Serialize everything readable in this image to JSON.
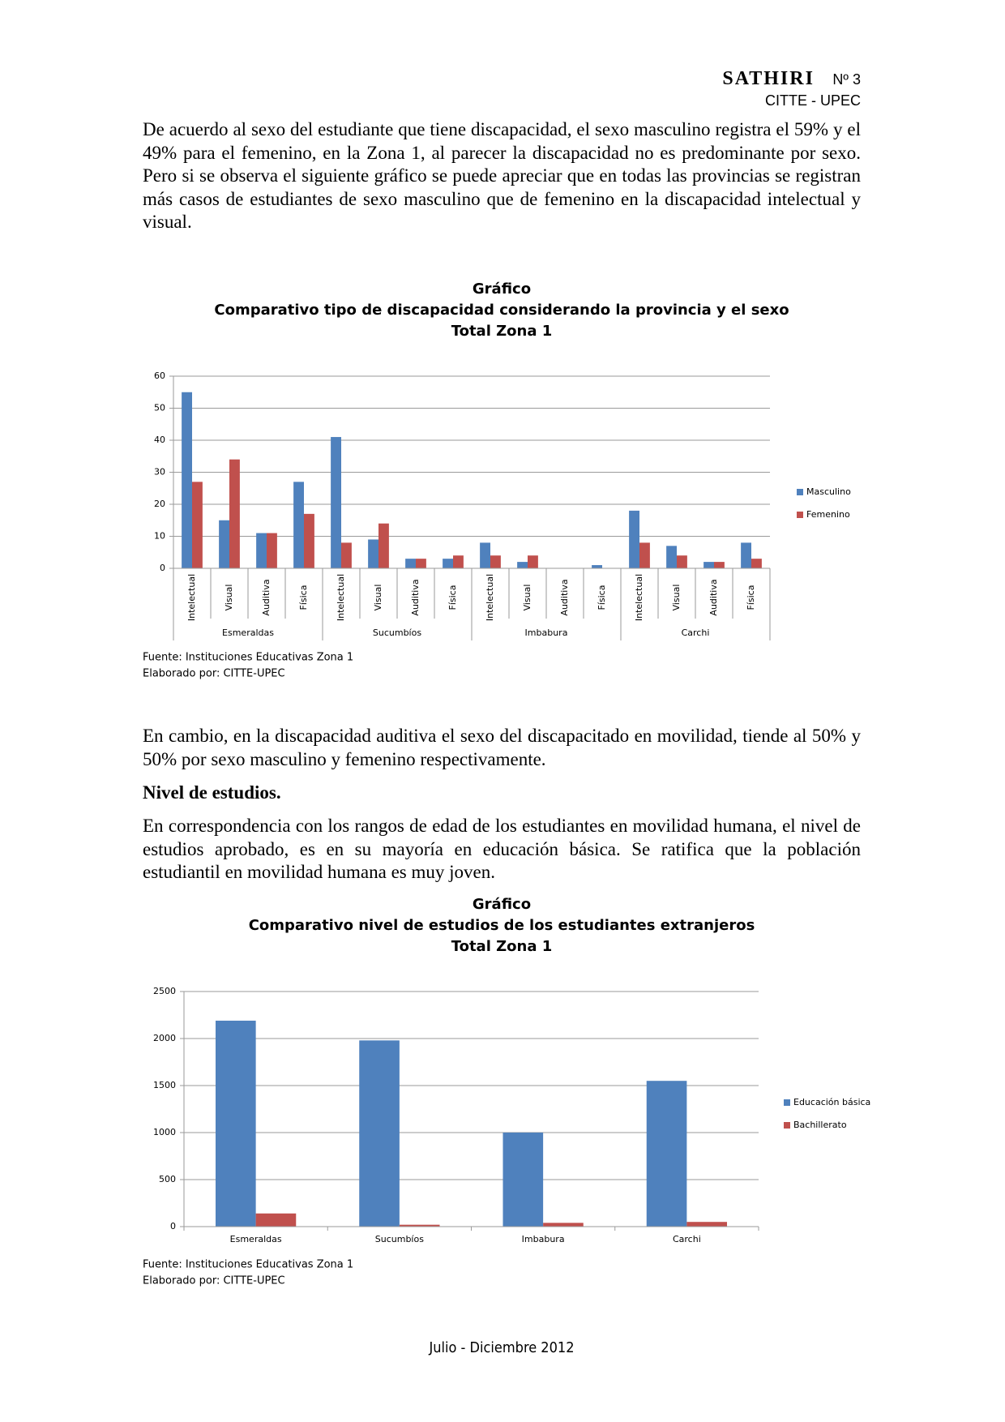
{
  "header": {
    "journal": "SATHIRI",
    "issue": "Nº 3",
    "publisher": "CITTE - UPEC"
  },
  "text": {
    "p1": "De acuerdo al sexo del estudiante que tiene discapacidad, el sexo masculino registra el 59% y el 49% para el femenino, en la Zona 1, al parecer la discapacidad no es predominante por sexo. Pero si se observa el siguiente gráfico se puede apreciar que en todas las provincias se registran más casos de estudiantes de sexo masculino que de femenino en la discapacidad intelectual y visual.",
    "p2": "En cambio, en la discapacidad auditiva el sexo del discapacitado en movilidad, tiende al 50% y 50% por sexo masculino y femenino respectivamente.",
    "heading": "Nivel de estudios.",
    "p3": "En correspondencia con los rangos de edad de los estudiantes en movilidad humana, el nivel de estudios aprobado, es en su mayoría en educación básica. Se ratifica que la población estudiantil en movilidad humana es muy joven."
  },
  "chart_data": [
    {
      "type": "bar",
      "title": [
        "Gráfico",
        "Comparativo tipo de discapacidad considerando la provincia y el sexo",
        "Total Zona 1"
      ],
      "categories": [
        "Intelectual",
        "Visual",
        "Auditiva",
        "Física",
        "Intelectual",
        "Visual",
        "Auditiva",
        "Física",
        "Intelectual",
        "Visual",
        "Auditiva",
        "Física",
        "Intelectual",
        "Visual",
        "Auditiva",
        "Física"
      ],
      "groups": [
        "Esmeraldas",
        "Sucumbíos",
        "Imbabura",
        "Carchi"
      ],
      "series": [
        {
          "name": "Masculino",
          "color": "#4f81bd",
          "values": [
            55,
            15,
            11,
            27,
            41,
            9,
            3,
            3,
            8,
            2,
            0,
            1,
            18,
            7,
            2,
            8
          ]
        },
        {
          "name": "Femenino",
          "color": "#c0504d",
          "values": [
            27,
            34,
            11,
            17,
            8,
            14,
            3,
            4,
            4,
            4,
            0,
            0,
            8,
            4,
            2,
            3
          ]
        }
      ],
      "ylim": [
        0,
        60
      ],
      "yticks": [
        0,
        10,
        20,
        30,
        40,
        50,
        60
      ],
      "grid": true,
      "legend": "right",
      "source": [
        "Fuente: Instituciones Educativas Zona 1",
        "Elaborado por: CITTE-UPEC"
      ]
    },
    {
      "type": "bar",
      "title": [
        "Gráfico",
        "Comparativo nivel de estudios de los estudiantes extranjeros",
        "Total Zona 1"
      ],
      "categories": [
        "Esmeraldas",
        "Sucumbíos",
        "Imbabura",
        "Carchi"
      ],
      "series": [
        {
          "name": "Educación básica",
          "color": "#4f81bd",
          "values": [
            2190,
            1980,
            1000,
            1550
          ]
        },
        {
          "name": "Bachillerato",
          "color": "#c0504d",
          "values": [
            140,
            20,
            40,
            50
          ]
        }
      ],
      "ylim": [
        0,
        2500
      ],
      "yticks": [
        0,
        500,
        1000,
        1500,
        2000,
        2500
      ],
      "grid": true,
      "legend": "right",
      "source": [
        "Fuente: Instituciones Educativas Zona 1",
        "Elaborado por: CITTE-UPEC"
      ]
    }
  ],
  "footer": "Julio - Diciembre 2012"
}
